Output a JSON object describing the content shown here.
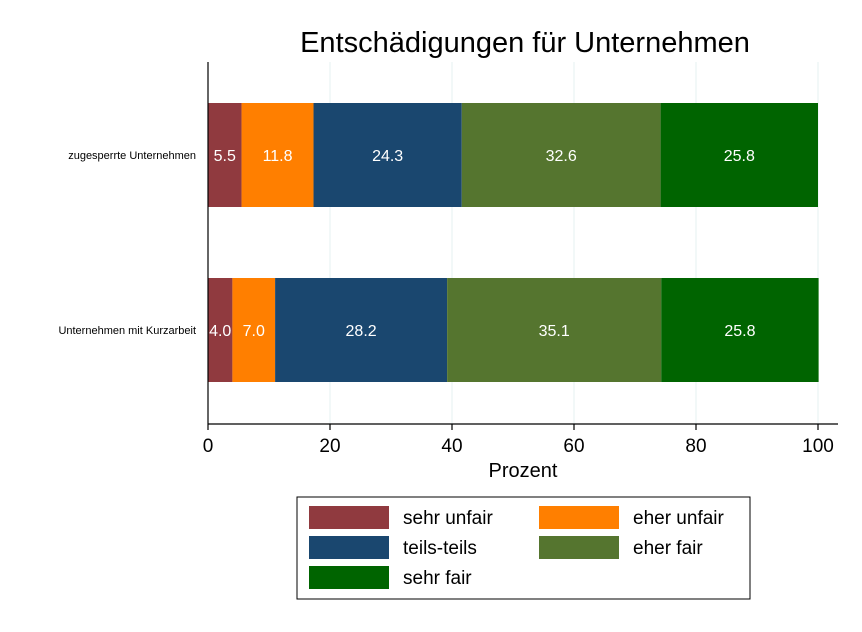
{
  "chart_data": {
    "type": "bar",
    "orientation": "horizontal",
    "stacked": true,
    "title": "Entschädigungen für Unternehmen",
    "xlabel": "Prozent",
    "ylabel": "",
    "xlim": [
      0,
      100
    ],
    "xticks": [
      "0",
      "20",
      "40",
      "60",
      "80",
      "100"
    ],
    "grid": true,
    "legend_position": "bottom",
    "categories": [
      "zugesperrte Unternehmen",
      "Unternehmen mit Kurzarbeit"
    ],
    "series": [
      {
        "name": "sehr unfair",
        "color": "#903a3f",
        "values": [
          5.5,
          4.0
        ]
      },
      {
        "name": "eher unfair",
        "color": "#ff7f00",
        "values": [
          11.8,
          7.0
        ]
      },
      {
        "name": "teils-teils",
        "color": "#1a476f",
        "values": [
          24.3,
          28.2
        ]
      },
      {
        "name": "eher fair",
        "color": "#55752f",
        "values": [
          32.6,
          35.1
        ]
      },
      {
        "name": "sehr fair",
        "color": "#006400",
        "values": [
          25.8,
          25.8
        ]
      }
    ],
    "data_labels": [
      [
        "5.5",
        "11.8",
        "24.3",
        "32.6",
        "25.8"
      ],
      [
        "4.0",
        "7.0",
        "28.2",
        "35.1",
        "25.8"
      ]
    ]
  }
}
